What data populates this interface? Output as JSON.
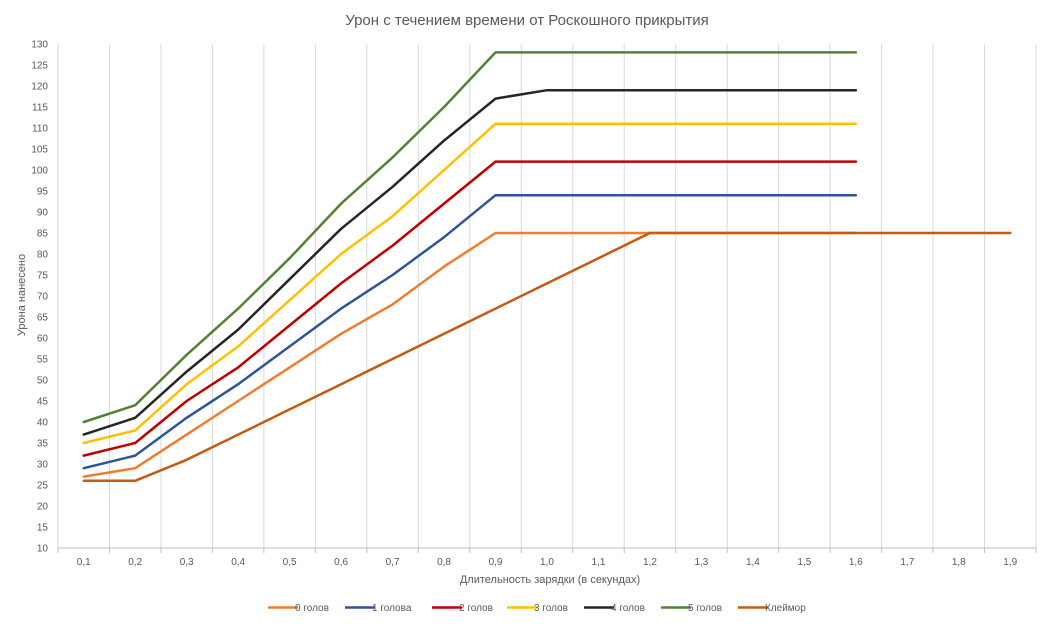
{
  "chart_data": {
    "type": "line",
    "title": "Урон с течением времени от Роскошного прикрытия",
    "xlabel": "Длительность зарядки (в секундах)",
    "ylabel": "Урона нанесено",
    "categories": [
      "0,1",
      "0,2",
      "0,3",
      "0,4",
      "0,5",
      "0,6",
      "0,7",
      "0,8",
      "0,9",
      "1,0",
      "1,1",
      "1,2",
      "1,3",
      "1,4",
      "1,5",
      "1,6",
      "1,7",
      "1,8",
      "1,9"
    ],
    "ylim": [
      10,
      130
    ],
    "ytick_step": 5,
    "grid": "vertical",
    "legend_position": "bottom",
    "series": [
      {
        "name": "0 голов",
        "color": "#ED7D31",
        "values": [
          27,
          29,
          37,
          45,
          53,
          61,
          68,
          77,
          85,
          85,
          85,
          85,
          85,
          85,
          85,
          85,
          null,
          null,
          null
        ]
      },
      {
        "name": "1 голова",
        "color": "#2F5597",
        "values": [
          29,
          32,
          41,
          49,
          58,
          67,
          75,
          84,
          94,
          94,
          94,
          94,
          94,
          94,
          94,
          94,
          null,
          null,
          null
        ]
      },
      {
        "name": "2 голов",
        "color": "#C00000",
        "values": [
          32,
          35,
          45,
          53,
          63,
          73,
          82,
          92,
          102,
          102,
          102,
          102,
          102,
          102,
          102,
          102,
          null,
          null,
          null
        ]
      },
      {
        "name": "3 голов",
        "color": "#FFC000",
        "values": [
          35,
          38,
          49,
          58,
          69,
          80,
          89,
          100,
          111,
          111,
          111,
          111,
          111,
          111,
          111,
          111,
          null,
          null,
          null
        ]
      },
      {
        "name": "4 голов",
        "color": "#262626",
        "values": [
          37,
          41,
          52,
          62,
          74,
          86,
          96,
          107,
          117,
          119,
          119,
          119,
          119,
          119,
          119,
          119,
          null,
          null,
          null
        ]
      },
      {
        "name": "5 голов",
        "color": "#548235",
        "values": [
          40,
          44,
          56,
          67,
          79,
          92,
          103,
          115,
          128,
          128,
          128,
          128,
          128,
          128,
          128,
          128,
          null,
          null,
          null
        ]
      },
      {
        "name": "Клеймор",
        "color": "#C55A11",
        "values": [
          26,
          26,
          31,
          37,
          43,
          49,
          55,
          61,
          67,
          73,
          79,
          85,
          85,
          85,
          85,
          85,
          85,
          85,
          85
        ]
      }
    ]
  }
}
